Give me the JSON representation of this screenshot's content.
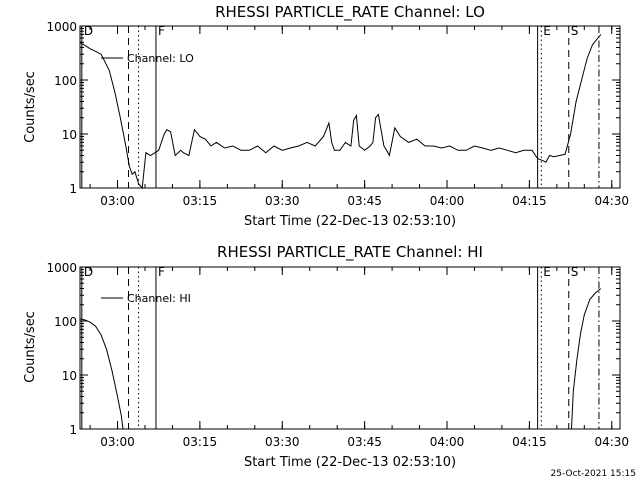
{
  "footer": {
    "timestamp": "25-Oct-2021 15:15"
  },
  "colors": {
    "background": "#ffffff",
    "ink": "#000000"
  },
  "chart_data": [
    {
      "type": "line",
      "title": "RHESSI PARTICLE_RATE Channel: LO",
      "xlabel": "Start Time (22-Dec-13 02:53:10)",
      "ylabel": "Counts/sec",
      "yscale": "log",
      "xlim": [
        "02:53:10",
        "04:31:30"
      ],
      "ylim": [
        1,
        1000
      ],
      "x_ticks": [
        "03:00",
        "03:15",
        "03:30",
        "03:45",
        "04:00",
        "04:15",
        "04:30"
      ],
      "y_ticks": [
        "1",
        "10",
        "100",
        "1000"
      ],
      "legend": {
        "position": "top-left",
        "entries": [
          "Channel: LO"
        ]
      },
      "markers": [
        {
          "time": "02:53:30",
          "label": "D",
          "style": "solid"
        },
        {
          "time": "03:02:00",
          "label": "",
          "style": "dashed"
        },
        {
          "time": "03:03:50",
          "label": "",
          "style": "dotted"
        },
        {
          "time": "03:07:00",
          "label": "F",
          "style": "solid"
        },
        {
          "time": "04:16:30",
          "label": "",
          "style": "solid"
        },
        {
          "time": "04:17:10",
          "label": "E",
          "style": "dotted"
        },
        {
          "time": "04:22:10",
          "label": "S",
          "style": "dashed"
        },
        {
          "time": "04:27:40",
          "label": "",
          "style": "dash-dot"
        }
      ],
      "series": [
        {
          "name": "Channel: LO",
          "x": [
            "02:53:10",
            "02:55:00",
            "02:57:00",
            "02:58:30",
            "02:59:30",
            "03:00:30",
            "03:01:30",
            "03:02:10",
            "03:02:40",
            "03:03:10",
            "03:03:50",
            "03:04:30",
            "03:05:10",
            "03:06:00",
            "03:07:30",
            "03:08:30",
            "03:09:00",
            "03:09:40",
            "03:10:30",
            "03:11:30",
            "03:12:00",
            "03:13:00",
            "03:14:00",
            "03:15:00",
            "03:16:00",
            "03:17:00",
            "03:18:00",
            "03:19:30",
            "03:21:00",
            "03:22:30",
            "03:24:00",
            "03:25:30",
            "03:27:00",
            "03:28:30",
            "03:30:00",
            "03:31:30",
            "03:33:00",
            "03:34:30",
            "03:36:00",
            "03:37:30",
            "03:38:30",
            "03:39:00",
            "03:39:30",
            "03:40:30",
            "03:41:30",
            "03:42:30",
            "03:43:00",
            "03:43:30",
            "03:44:00",
            "03:45:00",
            "03:46:00",
            "03:46:30",
            "03:47:00",
            "03:47:30",
            "03:48:30",
            "03:49:00",
            "03:49:30",
            "03:50:30",
            "03:51:30",
            "03:53:00",
            "03:54:30",
            "03:56:00",
            "03:57:30",
            "03:59:00",
            "04:00:30",
            "04:02:00",
            "04:03:30",
            "04:05:00",
            "04:06:30",
            "04:08:00",
            "04:09:30",
            "04:11:00",
            "04:12:30",
            "04:14:00",
            "04:15:30",
            "04:16:30",
            "04:17:30",
            "04:18:00",
            "04:18:40",
            "04:19:30",
            "04:20:30",
            "04:21:30",
            "04:22:30",
            "04:23:30",
            "04:24:30",
            "04:25:30",
            "04:26:30",
            "04:27:30",
            "04:28:00"
          ],
          "y": [
            500,
            380,
            300,
            150,
            60,
            20,
            6,
            2.5,
            1.8,
            2.0,
            1.2,
            1.0,
            4.5,
            4.0,
            5.0,
            10,
            12,
            11,
            4,
            5,
            4.5,
            4,
            12,
            9,
            8,
            6,
            7,
            5.5,
            6,
            5,
            5,
            6,
            4.5,
            6,
            5,
            5.5,
            6,
            7,
            6,
            9,
            16,
            7,
            5,
            5,
            7,
            6,
            18,
            22,
            6,
            5,
            6,
            7,
            20,
            23,
            6,
            5,
            4,
            13,
            9,
            7,
            8,
            6,
            6,
            5.5,
            6,
            5,
            5,
            6,
            5.5,
            5,
            5.5,
            5,
            4.5,
            5,
            5,
            3.5,
            3.2,
            3.0,
            4.0,
            3.8,
            4.0,
            4.2,
            10,
            40,
            100,
            250,
            450,
            600,
            700
          ]
        }
      ]
    },
    {
      "type": "line",
      "title": "RHESSI PARTICLE_RATE Channel: HI",
      "xlabel": "Start Time (22-Dec-13 02:53:10)",
      "ylabel": "Counts/sec",
      "yscale": "log",
      "xlim": [
        "02:53:10",
        "04:31:30"
      ],
      "ylim": [
        1,
        1000
      ],
      "x_ticks": [
        "03:00",
        "03:15",
        "03:30",
        "03:45",
        "04:00",
        "04:15",
        "04:30"
      ],
      "y_ticks": [
        "1",
        "10",
        "100",
        "1000"
      ],
      "legend": {
        "position": "top-left",
        "entries": [
          "Channel: HI"
        ]
      },
      "markers": [
        {
          "time": "02:53:30",
          "label": "D",
          "style": "solid"
        },
        {
          "time": "03:02:00",
          "label": "",
          "style": "dashed"
        },
        {
          "time": "03:03:50",
          "label": "",
          "style": "dotted"
        },
        {
          "time": "03:07:00",
          "label": "F",
          "style": "solid"
        },
        {
          "time": "04:16:30",
          "label": "",
          "style": "solid"
        },
        {
          "time": "04:17:10",
          "label": "E",
          "style": "dotted"
        },
        {
          "time": "04:22:10",
          "label": "S",
          "style": "dashed"
        },
        {
          "time": "04:27:40",
          "label": "",
          "style": "dash-dot"
        }
      ],
      "series": [
        {
          "name": "Channel: HI",
          "x": [
            "02:53:10",
            "02:54:00",
            "02:55:00",
            "02:56:00",
            "02:57:00",
            "02:58:00",
            "02:59:00",
            "03:00:00",
            "03:00:40",
            "03:01:00",
            "04:22:40",
            "04:23:00",
            "04:23:40",
            "04:24:20",
            "04:25:00",
            "04:26:00",
            "04:27:00",
            "04:28:00"
          ],
          "y": [
            110,
            105,
            95,
            80,
            55,
            30,
            12,
            4,
            1.8,
            1.0,
            1.0,
            5,
            20,
            60,
            130,
            250,
            330,
            400
          ]
        }
      ]
    }
  ]
}
